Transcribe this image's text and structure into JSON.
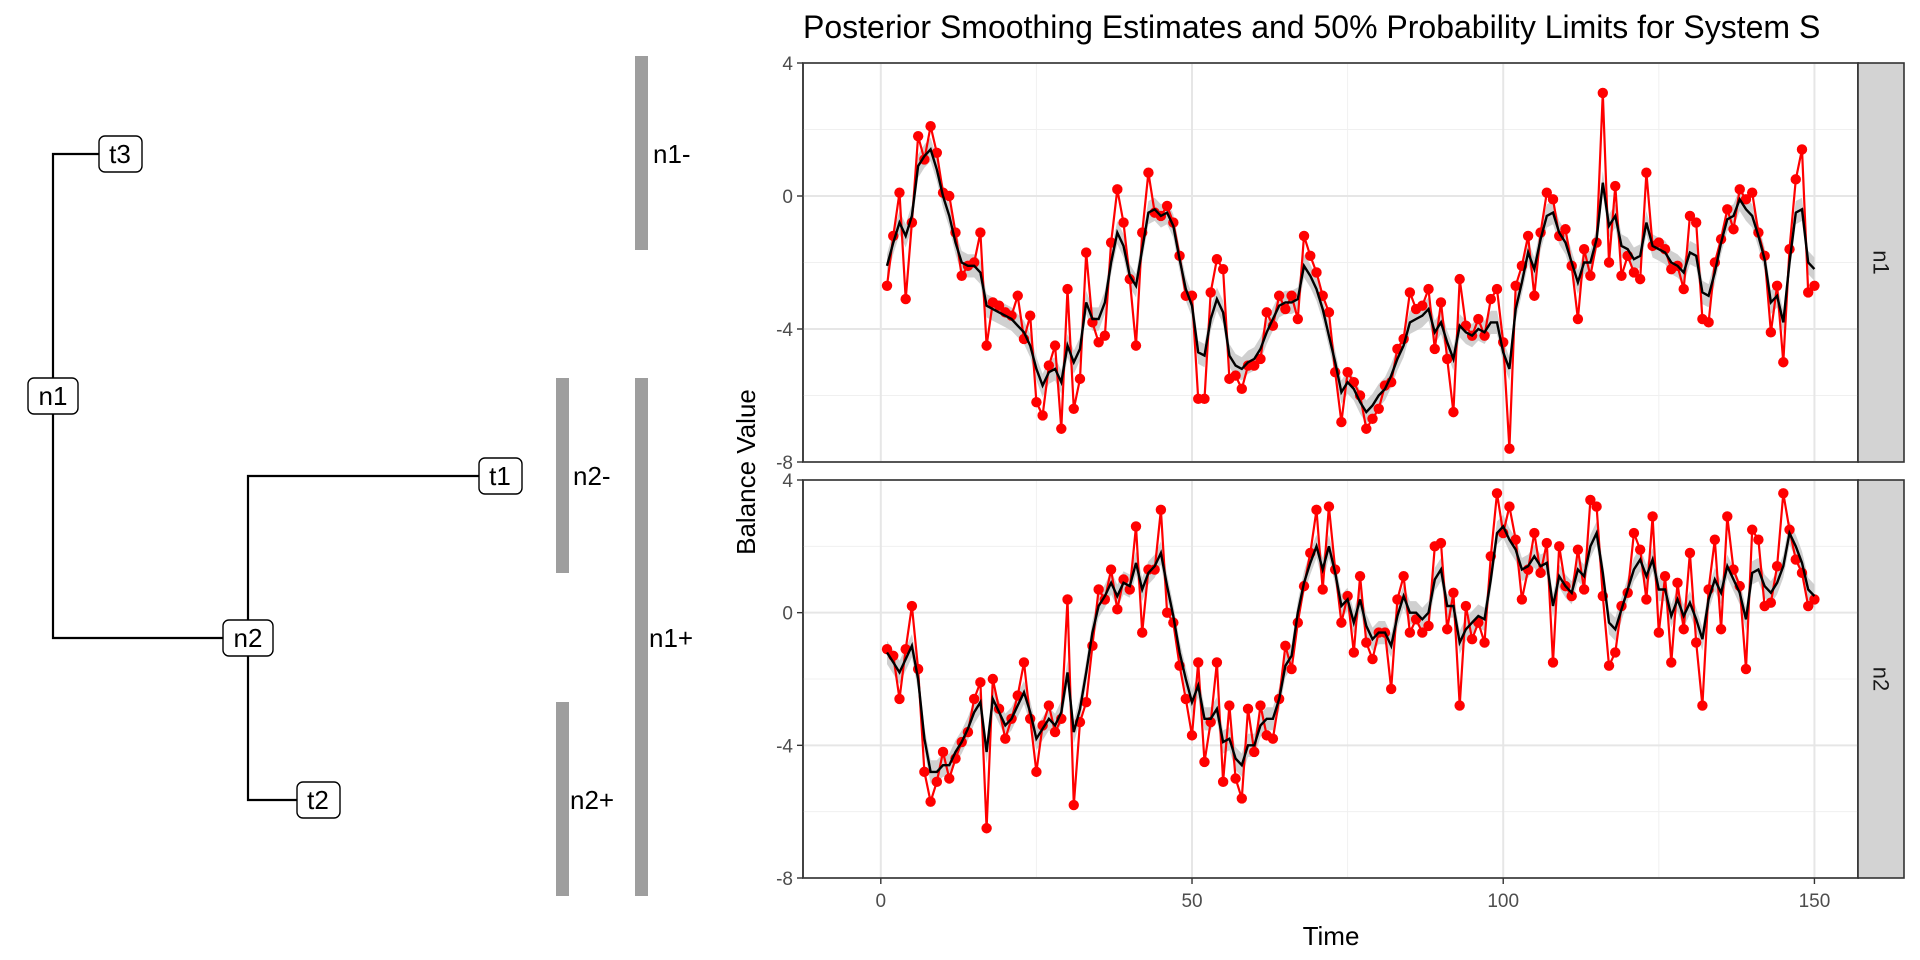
{
  "tree": {
    "nodes": [
      {
        "id": "n1",
        "label": "n1"
      },
      {
        "id": "n2",
        "label": "n2"
      },
      {
        "id": "t1",
        "label": "t1"
      },
      {
        "id": "t2",
        "label": "t2"
      },
      {
        "id": "t3",
        "label": "t3"
      }
    ],
    "edges": [
      [
        "n1",
        "t3"
      ],
      [
        "n1",
        "n2"
      ],
      [
        "n2",
        "t1"
      ],
      [
        "n2",
        "t2"
      ]
    ],
    "groups": [
      {
        "label": "n1-",
        "covers": [
          "t3"
        ]
      },
      {
        "label": "n2-",
        "covers": [
          "t1"
        ]
      },
      {
        "label": "n2+",
        "covers": [
          "t2"
        ]
      },
      {
        "label": "n1+",
        "covers": [
          "t1",
          "t2"
        ]
      }
    ]
  },
  "chart_data": {
    "type": "line",
    "title": "Posterior Smoothing Estimates and 50% Probability Limits for System S",
    "xlabel": "Time",
    "ylabel": "Balance Value",
    "xlim": [
      -12.5,
      157
    ],
    "ylim": [
      -8,
      4
    ],
    "x_ticks": [
      0,
      50,
      100,
      150
    ],
    "y_ticks": [
      -8,
      -4,
      0,
      4
    ],
    "colors": {
      "observed": "#ff0000",
      "smoothed": "#000000",
      "band": "#c8c8c8",
      "strip": "#d3d3d3"
    },
    "panels": [
      {
        "strip_label": "n1",
        "observed": [
          -2.7,
          -1.2,
          0.1,
          -3.1,
          -0.8,
          1.8,
          1.1,
          2.1,
          1.3,
          0.1,
          0.0,
          -1.1,
          -2.4,
          -2.1,
          -2.0,
          -1.1,
          -4.5,
          -3.2,
          -3.3,
          -3.5,
          -3.6,
          -3.0,
          -4.3,
          -3.6,
          -6.2,
          -6.6,
          -5.1,
          -4.5,
          -7.0,
          -2.8,
          -6.4,
          -5.5,
          -1.7,
          -3.8,
          -4.4,
          -4.2,
          -1.4,
          0.2,
          -0.8,
          -2.5,
          -4.5,
          -1.1,
          0.7,
          -0.5,
          -0.6,
          -0.3,
          -0.8,
          -1.8,
          -3.0,
          -3.0,
          -6.1,
          -6.1,
          -2.9,
          -1.9,
          -2.2,
          -5.5,
          -5.4,
          -5.8,
          -5.1,
          -5.1,
          -4.9,
          -3.5,
          -3.9,
          -3.0,
          -3.4,
          -3.0,
          -3.7,
          -1.2,
          -1.8,
          -2.3,
          -3.0,
          -3.5,
          -5.3,
          -6.8,
          -5.3,
          -5.6,
          -6.0,
          -7.0,
          -6.7,
          -6.4,
          -5.7,
          -5.6,
          -4.6,
          -4.3,
          -2.9,
          -3.4,
          -3.3,
          -2.8,
          -4.6,
          -3.2,
          -4.9,
          -6.5,
          -2.5,
          -3.9,
          -4.2,
          -3.7,
          -4.2,
          -3.1,
          -2.8,
          -4.4,
          -7.6,
          -2.7,
          -2.1,
          -1.2,
          -3.0,
          -1.1,
          0.1,
          -0.1,
          -1.2,
          -1.0,
          -2.1,
          -3.7,
          -1.6,
          -2.4,
          -1.4,
          3.1,
          -2.0,
          0.3,
          -2.4,
          -1.8,
          -2.3,
          -2.5,
          0.7,
          -1.5,
          -1.4,
          -1.6,
          -2.2,
          -2.1,
          -2.8,
          -0.6,
          -0.8,
          -3.7,
          -3.8,
          -2.0,
          -1.3,
          -0.4,
          -1.0,
          0.2,
          -0.1,
          0.1,
          -1.1,
          -1.8,
          -4.1,
          -2.7,
          -5.0,
          -1.6,
          0.5,
          1.4,
          -2.9,
          -2.7
        ],
        "smoothed": [
          -2.1,
          -1.4,
          -0.8,
          -1.2,
          -0.6,
          0.9,
          1.2,
          1.4,
          0.8,
          0.0,
          -0.6,
          -1.4,
          -2.0,
          -2.1,
          -2.1,
          -2.3,
          -3.3,
          -3.4,
          -3.5,
          -3.6,
          -3.7,
          -3.9,
          -4.1,
          -4.5,
          -5.2,
          -5.7,
          -5.3,
          -5.2,
          -5.6,
          -4.5,
          -5.0,
          -4.6,
          -3.2,
          -3.7,
          -3.7,
          -3.2,
          -2.0,
          -1.1,
          -1.5,
          -2.4,
          -2.7,
          -1.6,
          -0.5,
          -0.4,
          -0.6,
          -0.5,
          -0.9,
          -1.9,
          -2.8,
          -3.3,
          -4.7,
          -4.8,
          -3.7,
          -3.1,
          -3.5,
          -4.8,
          -5.1,
          -5.2,
          -5.0,
          -4.9,
          -4.6,
          -4.1,
          -3.7,
          -3.3,
          -3.2,
          -3.2,
          -3.1,
          -2.1,
          -2.4,
          -2.8,
          -3.4,
          -4.2,
          -5.0,
          -5.9,
          -5.6,
          -5.8,
          -6.2,
          -6.5,
          -6.3,
          -6.0,
          -5.8,
          -5.4,
          -4.9,
          -4.5,
          -3.8,
          -3.7,
          -3.6,
          -3.4,
          -4.1,
          -3.8,
          -4.4,
          -4.9,
          -3.9,
          -4.1,
          -4.2,
          -4.0,
          -4.1,
          -3.8,
          -3.8,
          -4.7,
          -5.2,
          -3.4,
          -2.6,
          -1.7,
          -2.2,
          -1.3,
          -0.6,
          -0.5,
          -1.1,
          -1.4,
          -2.0,
          -2.6,
          -2.0,
          -2.0,
          -1.3,
          0.4,
          -0.9,
          -0.6,
          -1.5,
          -1.6,
          -1.9,
          -1.8,
          -0.8,
          -1.5,
          -1.6,
          -1.7,
          -2.0,
          -2.1,
          -2.3,
          -1.7,
          -1.8,
          -2.9,
          -3.0,
          -2.3,
          -1.4,
          -0.7,
          -0.6,
          -0.1,
          -0.4,
          -0.6,
          -1.2,
          -1.9,
          -3.2,
          -3.0,
          -3.8,
          -2.0,
          -0.5,
          -0.4,
          -2.0,
          -2.2
        ]
      },
      {
        "strip_label": "n2",
        "observed": [
          -1.1,
          -1.3,
          -2.6,
          -1.1,
          0.2,
          -1.7,
          -4.8,
          -5.7,
          -5.1,
          -4.2,
          -5.0,
          -4.4,
          -3.9,
          -3.6,
          -2.6,
          -2.1,
          -6.5,
          -2.0,
          -2.9,
          -3.8,
          -3.2,
          -2.5,
          -1.5,
          -3.2,
          -4.8,
          -3.4,
          -2.8,
          -3.6,
          -3.2,
          0.4,
          -5.8,
          -3.3,
          -2.7,
          -1.0,
          0.7,
          0.4,
          1.3,
          0.1,
          1.0,
          0.7,
          2.6,
          -0.6,
          1.3,
          1.3,
          3.1,
          0.0,
          -0.3,
          -1.6,
          -2.6,
          -3.7,
          -1.5,
          -4.5,
          -3.3,
          -1.5,
          -5.1,
          -2.8,
          -5.0,
          -5.6,
          -2.9,
          -4.2,
          -2.8,
          -3.7,
          -3.8,
          -2.6,
          -1.0,
          -1.7,
          -0.3,
          0.8,
          1.8,
          3.1,
          0.7,
          3.2,
          1.3,
          -0.3,
          0.5,
          -1.2,
          1.1,
          -0.9,
          -1.4,
          -0.6,
          -0.6,
          -2.3,
          0.4,
          1.1,
          -0.6,
          -0.2,
          -0.6,
          -0.4,
          2.0,
          2.1,
          -0.5,
          0.6,
          -2.8,
          0.2,
          -0.8,
          -0.3,
          -0.9,
          1.7,
          3.6,
          2.4,
          3.2,
          2.2,
          0.4,
          1.3,
          2.4,
          1.2,
          2.1,
          -1.5,
          2.0,
          0.8,
          0.5,
          1.9,
          0.7,
          3.4,
          3.2,
          0.5,
          -1.6,
          -1.2,
          0.2,
          0.6,
          2.4,
          1.9,
          0.4,
          2.9,
          -0.6,
          1.1,
          -1.5,
          0.9,
          -0.5,
          1.8,
          -0.9,
          -2.8,
          0.7,
          2.2,
          -0.5,
          2.9,
          1.3,
          0.8,
          -1.7,
          2.5,
          2.2,
          0.2,
          0.3,
          1.4,
          3.6,
          2.5,
          1.6,
          1.2,
          0.2,
          0.4
        ],
        "smoothed": [
          -1.2,
          -1.5,
          -1.8,
          -1.4,
          -1.0,
          -2.0,
          -3.8,
          -4.8,
          -4.8,
          -4.6,
          -4.6,
          -4.2,
          -3.9,
          -3.5,
          -3.0,
          -2.7,
          -4.2,
          -2.6,
          -3.0,
          -3.4,
          -3.2,
          -2.8,
          -2.4,
          -3.0,
          -3.8,
          -3.5,
          -3.2,
          -3.4,
          -3.0,
          -1.8,
          -3.6,
          -2.9,
          -1.8,
          -0.6,
          0.2,
          0.5,
          0.9,
          0.5,
          0.9,
          0.8,
          1.5,
          0.7,
          1.2,
          1.4,
          1.8,
          0.8,
          -0.1,
          -1.2,
          -2.0,
          -2.7,
          -2.2,
          -3.2,
          -3.2,
          -2.9,
          -3.9,
          -3.8,
          -4.4,
          -4.6,
          -4.0,
          -4.0,
          -3.4,
          -3.2,
          -3.2,
          -2.6,
          -1.6,
          -1.3,
          0.0,
          0.9,
          1.5,
          2.0,
          1.3,
          2.0,
          1.2,
          0.2,
          0.4,
          -0.3,
          0.4,
          -0.4,
          -0.8,
          -0.6,
          -0.6,
          -1.0,
          -0.1,
          0.5,
          0.0,
          0.0,
          -0.2,
          0.0,
          1.0,
          1.3,
          0.2,
          0.2,
          -0.9,
          -0.5,
          -0.3,
          -0.1,
          -0.2,
          1.0,
          2.4,
          2.6,
          2.2,
          1.9,
          1.3,
          1.4,
          1.7,
          1.4,
          1.5,
          0.2,
          1.1,
          0.8,
          0.6,
          1.3,
          1.1,
          2.0,
          2.4,
          1.2,
          -0.3,
          -0.5,
          0.1,
          0.7,
          1.3,
          1.6,
          1.1,
          1.6,
          0.7,
          0.7,
          -0.1,
          0.4,
          -0.1,
          0.3,
          -0.2,
          -0.8,
          0.4,
          1.0,
          0.6,
          1.4,
          1.0,
          0.6,
          -0.2,
          1.2,
          1.3,
          0.8,
          0.6,
          0.9,
          1.4,
          2.4,
          2.0,
          1.5,
          0.7,
          0.5
        ]
      }
    ]
  }
}
